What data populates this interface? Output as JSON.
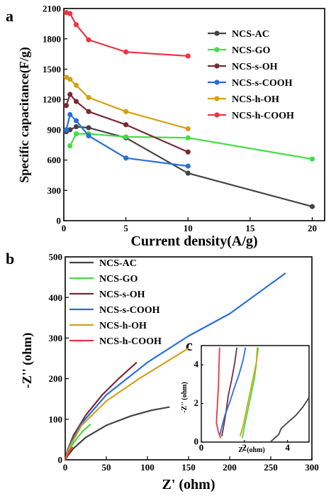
{
  "chart_data": [
    {
      "panel": "a",
      "type": "line",
      "xlabel": "Current  density(A/g)",
      "ylabel": "Specific capacitance(F/g)",
      "xlim": [
        0,
        21
      ],
      "ylim": [
        0,
        2100
      ],
      "xticks": [
        "0",
        "5",
        "10",
        "15",
        "20"
      ],
      "yticks": [
        "0",
        "300",
        "600",
        "900",
        "1200",
        "1500",
        "1800",
        "2100"
      ],
      "legend_position": "top-right",
      "series": [
        {
          "name": "NCS-AC",
          "color": "#444444",
          "x": [
            0.2,
            0.5,
            1,
            2,
            5,
            10,
            20
          ],
          "y": [
            880,
            900,
            930,
            920,
            820,
            470,
            140
          ]
        },
        {
          "name": "NCS-GO",
          "color": "#44dd44",
          "x": [
            0.5,
            1,
            2,
            5,
            10,
            20
          ],
          "y": [
            740,
            860,
            860,
            830,
            820,
            610
          ]
        },
        {
          "name": "NCS-s-OH",
          "color": "#7a2a35",
          "x": [
            0.2,
            0.5,
            1,
            2,
            5,
            10
          ],
          "y": [
            1140,
            1250,
            1180,
            1080,
            950,
            680
          ]
        },
        {
          "name": "NCS-s-COOH",
          "color": "#2a6fd6",
          "x": [
            0.2,
            0.5,
            1,
            2,
            5,
            10
          ],
          "y": [
            900,
            1050,
            990,
            840,
            620,
            540
          ]
        },
        {
          "name": "NCS-h-OH",
          "color": "#d4a017",
          "x": [
            0.2,
            0.5,
            1,
            2,
            5,
            10
          ],
          "y": [
            1420,
            1400,
            1340,
            1220,
            1080,
            910
          ]
        },
        {
          "name": "NCS-h-COOH",
          "color": "#ee3344",
          "x": [
            0.2,
            0.5,
            1,
            2,
            5,
            10
          ],
          "y": [
            2060,
            2050,
            1940,
            1790,
            1670,
            1630
          ]
        }
      ]
    },
    {
      "panel": "b",
      "type": "line",
      "xlabel": "Z' (ohm)",
      "ylabel": "-Z'' (ohm)",
      "xlim": [
        0,
        300
      ],
      "ylim": [
        0,
        500
      ],
      "xticks": [
        "0",
        "50",
        "100",
        "150",
        "200",
        "250",
        "300"
      ],
      "yticks": [
        "0",
        "100",
        "200",
        "300",
        "400",
        "500"
      ],
      "legend_position": "top-left",
      "series": [
        {
          "name": "NCS-AC",
          "color": "#444444",
          "x": [
            0,
            3,
            10,
            25,
            50,
            80,
            105,
            127
          ],
          "y": [
            0,
            10,
            28,
            55,
            85,
            108,
            122,
            130
          ]
        },
        {
          "name": "NCS-GO",
          "color": "#44dd44",
          "x": [
            0,
            3,
            8,
            15,
            22,
            31
          ],
          "y": [
            0,
            15,
            35,
            55,
            72,
            88
          ]
        },
        {
          "name": "NCS-s-OH",
          "color": "#7a2a35",
          "x": [
            0,
            3,
            10,
            25,
            45,
            65,
            87
          ],
          "y": [
            0,
            25,
            60,
            110,
            160,
            200,
            240
          ]
        },
        {
          "name": "NCS-s-COOH",
          "color": "#2a6fd6",
          "x": [
            0,
            5,
            20,
            50,
            100,
            150,
            200,
            268
          ],
          "y": [
            0,
            35,
            90,
            160,
            240,
            305,
            360,
            460
          ]
        },
        {
          "name": "NCS-h-OH",
          "color": "#d4a017",
          "x": [
            0,
            5,
            20,
            50,
            90,
            130,
            150
          ],
          "y": [
            0,
            30,
            85,
            145,
            200,
            250,
            275
          ]
        },
        {
          "name": "NCS-h-COOH",
          "color": "#ee3344",
          "x": [
            0,
            2,
            5,
            9
          ],
          "y": [
            0,
            8,
            20,
            32
          ]
        }
      ]
    },
    {
      "panel": "c",
      "type": "line",
      "xlabel": "Z' (ohm)",
      "ylabel": "-Z'' (ohm)",
      "xlim": [
        0,
        5
      ],
      "ylim": [
        0,
        5
      ],
      "xticks": [
        "0",
        "2",
        "4"
      ],
      "yticks": [
        "0",
        "2",
        "4"
      ],
      "series": [
        {
          "name": "NCS-AC",
          "color": "#444444",
          "x": [
            3.2,
            3.4,
            3.6,
            3.7,
            3.9,
            4.1,
            4.4,
            4.7,
            5.0
          ],
          "y": [
            0.0,
            0.2,
            0.4,
            0.7,
            0.9,
            1.1,
            1.4,
            1.8,
            2.3
          ]
        },
        {
          "name": "NCS-GO",
          "color": "#44dd44",
          "x": [
            1.9,
            2.0,
            2.15,
            2.3,
            2.45,
            2.55,
            2.6
          ],
          "y": [
            0.2,
            0.8,
            1.6,
            2.4,
            3.2,
            4.0,
            4.9
          ]
        },
        {
          "name": "NCS-s-OH",
          "color": "#7a2a35",
          "x": [
            0.95,
            1.05,
            1.15,
            1.25,
            1.4,
            1.55,
            1.65
          ],
          "y": [
            0.3,
            0.9,
            1.6,
            2.4,
            3.2,
            4.1,
            4.9
          ]
        },
        {
          "name": "NCS-s-COOH",
          "color": "#2a6fd6",
          "x": [
            0.85,
            0.95,
            1.1,
            1.3,
            1.5,
            1.75,
            1.95,
            2.05
          ],
          "y": [
            0.3,
            0.8,
            1.4,
            2.0,
            2.7,
            3.5,
            4.3,
            4.9
          ]
        },
        {
          "name": "NCS-h-OH",
          "color": "#d4a017",
          "x": [
            1.8,
            1.95,
            2.1,
            2.25,
            2.4,
            2.55,
            2.65
          ],
          "y": [
            0.3,
            0.9,
            1.7,
            2.5,
            3.3,
            4.1,
            4.9
          ]
        },
        {
          "name": "NCS-h-COOH",
          "color": "#ee3344",
          "x": [
            0.9,
            0.8,
            0.7,
            0.75,
            0.8,
            0.82,
            0.85
          ],
          "y": [
            0.2,
            0.5,
            1.0,
            2.0,
            3.0,
            4.0,
            4.9
          ]
        }
      ]
    }
  ]
}
